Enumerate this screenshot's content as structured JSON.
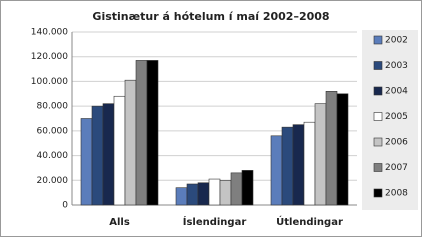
{
  "chart_data": {
    "type": "bar",
    "title": "Gistinætur á hótelum í maí 2002–2008",
    "categories": [
      "Alls",
      "Íslendingar",
      "Útlendingar"
    ],
    "series": [
      {
        "name": "2002",
        "color": "#5b7dbb",
        "values": [
          70000,
          14000,
          56000
        ]
      },
      {
        "name": "2003",
        "color": "#2b4a7c",
        "values": [
          80000,
          17000,
          63000
        ]
      },
      {
        "name": "2004",
        "color": "#18284e",
        "values": [
          82000,
          18000,
          65000
        ]
      },
      {
        "name": "2005",
        "color": "#ffffff",
        "values": [
          88000,
          21000,
          67000
        ]
      },
      {
        "name": "2006",
        "color": "#c4c4c4",
        "values": [
          101000,
          20000,
          82000
        ]
      },
      {
        "name": "2007",
        "color": "#7f7f7f",
        "values": [
          117000,
          26000,
          92000
        ]
      },
      {
        "name": "2008",
        "color": "#000000",
        "values": [
          117000,
          28000,
          90000
        ]
      }
    ],
    "ylim": [
      0,
      140000
    ],
    "yticks": [
      0,
      {
        "value": 20000,
        "label": "20.000"
      },
      {
        "value": 40000,
        "label": "40.000"
      },
      {
        "value": 60000,
        "label": "60.000"
      },
      {
        "value": 80000,
        "label": "80.000"
      },
      {
        "value": 100000,
        "label": "100.000"
      },
      {
        "value": 120000,
        "label": "120.000"
      },
      {
        "value": 140000,
        "label": "140.000"
      }
    ],
    "grid": true,
    "legend": "right"
  }
}
